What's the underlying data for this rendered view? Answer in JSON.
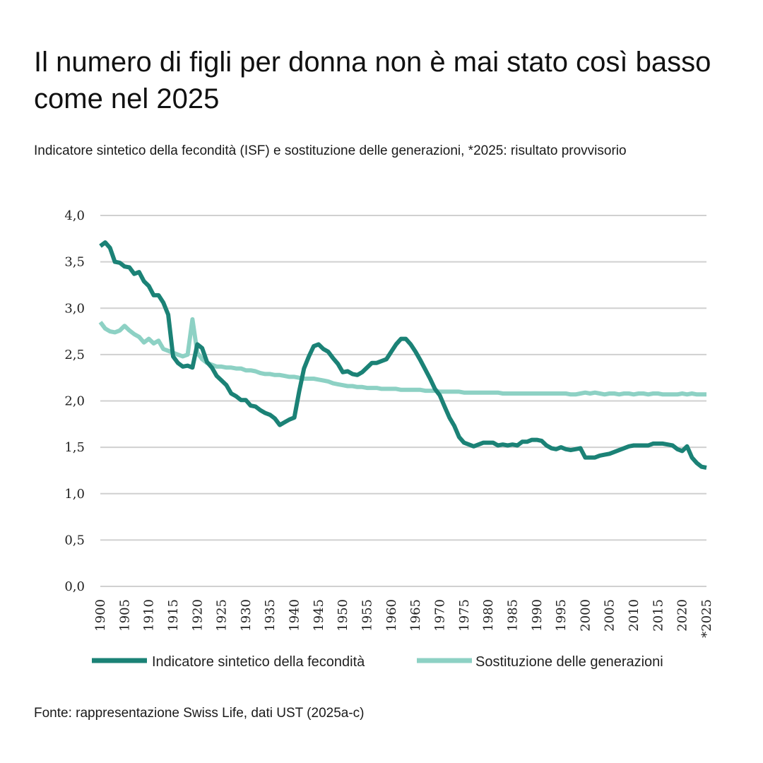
{
  "title": "Il numero di figli per donna non è mai stato così basso come nel 2025",
  "subtitle": "Indicatore sintetico della fecondità (ISF) e sostituzione delle generazioni, *2025: risultato provvisorio",
  "source": "Fonte: rappresentazione Swiss Life, dati UST (2025a-c)",
  "chart_data": {
    "type": "line",
    "xlim": [
      1900,
      2025
    ],
    "ylim": [
      0,
      4
    ],
    "grid": true,
    "legend_position": "bottom",
    "y_ticks": [
      {
        "value": 0,
        "label": "0,0"
      },
      {
        "value": 0.5,
        "label": "0,5"
      },
      {
        "value": 1,
        "label": "1,0"
      },
      {
        "value": 1.5,
        "label": "1,5"
      },
      {
        "value": 2,
        "label": "2,0"
      },
      {
        "value": 2.5,
        "label": "2,5"
      },
      {
        "value": 3,
        "label": "3,0"
      },
      {
        "value": 3.5,
        "label": "3,5"
      },
      {
        "value": 4,
        "label": "4,0"
      }
    ],
    "x_ticks": [
      {
        "value": 1900,
        "label": "1900"
      },
      {
        "value": 1905,
        "label": "1905"
      },
      {
        "value": 1910,
        "label": "1910"
      },
      {
        "value": 1915,
        "label": "1915"
      },
      {
        "value": 1920,
        "label": "1920"
      },
      {
        "value": 1925,
        "label": "1925"
      },
      {
        "value": 1930,
        "label": "1930"
      },
      {
        "value": 1935,
        "label": "1935"
      },
      {
        "value": 1940,
        "label": "1940"
      },
      {
        "value": 1945,
        "label": "1945"
      },
      {
        "value": 1950,
        "label": "1950"
      },
      {
        "value": 1955,
        "label": "1955"
      },
      {
        "value": 1960,
        "label": "1960"
      },
      {
        "value": 1965,
        "label": "1965"
      },
      {
        "value": 1970,
        "label": "1970"
      },
      {
        "value": 1975,
        "label": "1975"
      },
      {
        "value": 1980,
        "label": "1980"
      },
      {
        "value": 1985,
        "label": "1985"
      },
      {
        "value": 1990,
        "label": "1990"
      },
      {
        "value": 1995,
        "label": "1995"
      },
      {
        "value": 2000,
        "label": "2000"
      },
      {
        "value": 2005,
        "label": "2005"
      },
      {
        "value": 2010,
        "label": "2010"
      },
      {
        "value": 2015,
        "label": "2015"
      },
      {
        "value": 2020,
        "label": "2020"
      },
      {
        "value": 2025,
        "label": "*2025"
      }
    ],
    "series": [
      {
        "name": "Indicatore sintetico della fecondità",
        "color": "#1b8276",
        "points": [
          [
            1900,
            3.67
          ],
          [
            1901,
            3.71
          ],
          [
            1902,
            3.65
          ],
          [
            1903,
            3.5
          ],
          [
            1904,
            3.49
          ],
          [
            1905,
            3.45
          ],
          [
            1906,
            3.44
          ],
          [
            1907,
            3.37
          ],
          [
            1908,
            3.39
          ],
          [
            1909,
            3.29
          ],
          [
            1910,
            3.24
          ],
          [
            1911,
            3.14
          ],
          [
            1912,
            3.14
          ],
          [
            1913,
            3.06
          ],
          [
            1914,
            2.93
          ],
          [
            1915,
            2.48
          ],
          [
            1916,
            2.41
          ],
          [
            1917,
            2.37
          ],
          [
            1918,
            2.38
          ],
          [
            1919,
            2.36
          ],
          [
            1920,
            2.61
          ],
          [
            1921,
            2.57
          ],
          [
            1922,
            2.42
          ],
          [
            1923,
            2.36
          ],
          [
            1924,
            2.27
          ],
          [
            1925,
            2.22
          ],
          [
            1926,
            2.17
          ],
          [
            1927,
            2.08
          ],
          [
            1928,
            2.05
          ],
          [
            1929,
            2.01
          ],
          [
            1930,
            2.01
          ],
          [
            1931,
            1.95
          ],
          [
            1932,
            1.94
          ],
          [
            1933,
            1.9
          ],
          [
            1934,
            1.87
          ],
          [
            1935,
            1.85
          ],
          [
            1936,
            1.81
          ],
          [
            1937,
            1.74
          ],
          [
            1938,
            1.77
          ],
          [
            1939,
            1.8
          ],
          [
            1940,
            1.82
          ],
          [
            1941,
            2.1
          ],
          [
            1942,
            2.35
          ],
          [
            1943,
            2.48
          ],
          [
            1944,
            2.59
          ],
          [
            1945,
            2.61
          ],
          [
            1946,
            2.56
          ],
          [
            1947,
            2.53
          ],
          [
            1948,
            2.46
          ],
          [
            1949,
            2.4
          ],
          [
            1950,
            2.31
          ],
          [
            1951,
            2.32
          ],
          [
            1952,
            2.29
          ],
          [
            1953,
            2.28
          ],
          [
            1954,
            2.31
          ],
          [
            1955,
            2.36
          ],
          [
            1956,
            2.41
          ],
          [
            1957,
            2.41
          ],
          [
            1958,
            2.43
          ],
          [
            1959,
            2.45
          ],
          [
            1960,
            2.53
          ],
          [
            1961,
            2.61
          ],
          [
            1962,
            2.67
          ],
          [
            1963,
            2.67
          ],
          [
            1964,
            2.61
          ],
          [
            1965,
            2.53
          ],
          [
            1966,
            2.44
          ],
          [
            1967,
            2.34
          ],
          [
            1968,
            2.24
          ],
          [
            1969,
            2.13
          ],
          [
            1970,
            2.06
          ],
          [
            1971,
            1.94
          ],
          [
            1972,
            1.82
          ],
          [
            1973,
            1.73
          ],
          [
            1974,
            1.61
          ],
          [
            1975,
            1.55
          ],
          [
            1976,
            1.53
          ],
          [
            1977,
            1.51
          ],
          [
            1978,
            1.53
          ],
          [
            1979,
            1.55
          ],
          [
            1980,
            1.55
          ],
          [
            1981,
            1.55
          ],
          [
            1982,
            1.52
          ],
          [
            1983,
            1.53
          ],
          [
            1984,
            1.52
          ],
          [
            1985,
            1.53
          ],
          [
            1986,
            1.52
          ],
          [
            1987,
            1.56
          ],
          [
            1988,
            1.56
          ],
          [
            1989,
            1.58
          ],
          [
            1990,
            1.58
          ],
          [
            1991,
            1.57
          ],
          [
            1992,
            1.52
          ],
          [
            1993,
            1.49
          ],
          [
            1994,
            1.48
          ],
          [
            1995,
            1.5
          ],
          [
            1996,
            1.48
          ],
          [
            1997,
            1.47
          ],
          [
            1998,
            1.48
          ],
          [
            1999,
            1.49
          ],
          [
            2000,
            1.39
          ],
          [
            2001,
            1.39
          ],
          [
            2002,
            1.39
          ],
          [
            2003,
            1.41
          ],
          [
            2004,
            1.42
          ],
          [
            2005,
            1.43
          ],
          [
            2006,
            1.45
          ],
          [
            2007,
            1.47
          ],
          [
            2008,
            1.49
          ],
          [
            2009,
            1.51
          ],
          [
            2010,
            1.52
          ],
          [
            2011,
            1.52
          ],
          [
            2012,
            1.52
          ],
          [
            2013,
            1.52
          ],
          [
            2014,
            1.54
          ],
          [
            2015,
            1.54
          ],
          [
            2016,
            1.54
          ],
          [
            2017,
            1.53
          ],
          [
            2018,
            1.52
          ],
          [
            2019,
            1.48
          ],
          [
            2020,
            1.46
          ],
          [
            2021,
            1.51
          ],
          [
            2022,
            1.39
          ],
          [
            2023,
            1.33
          ],
          [
            2024,
            1.29
          ],
          [
            2025,
            1.28
          ]
        ]
      },
      {
        "name": "Sostituzione delle generazioni",
        "color": "#8dd1c4",
        "points": [
          [
            1900,
            2.85
          ],
          [
            1901,
            2.78
          ],
          [
            1902,
            2.75
          ],
          [
            1903,
            2.74
          ],
          [
            1904,
            2.76
          ],
          [
            1905,
            2.81
          ],
          [
            1906,
            2.76
          ],
          [
            1907,
            2.72
          ],
          [
            1908,
            2.69
          ],
          [
            1909,
            2.63
          ],
          [
            1910,
            2.67
          ],
          [
            1911,
            2.62
          ],
          [
            1912,
            2.65
          ],
          [
            1913,
            2.56
          ],
          [
            1914,
            2.54
          ],
          [
            1915,
            2.52
          ],
          [
            1916,
            2.5
          ],
          [
            1917,
            2.48
          ],
          [
            1918,
            2.5
          ],
          [
            1919,
            2.88
          ],
          [
            1920,
            2.52
          ],
          [
            1921,
            2.45
          ],
          [
            1922,
            2.41
          ],
          [
            1923,
            2.39
          ],
          [
            1924,
            2.37
          ],
          [
            1925,
            2.37
          ],
          [
            1926,
            2.36
          ],
          [
            1927,
            2.36
          ],
          [
            1928,
            2.35
          ],
          [
            1929,
            2.35
          ],
          [
            1930,
            2.33
          ],
          [
            1931,
            2.33
          ],
          [
            1932,
            2.32
          ],
          [
            1933,
            2.3
          ],
          [
            1934,
            2.29
          ],
          [
            1935,
            2.29
          ],
          [
            1936,
            2.28
          ],
          [
            1937,
            2.28
          ],
          [
            1938,
            2.27
          ],
          [
            1939,
            2.26
          ],
          [
            1940,
            2.26
          ],
          [
            1941,
            2.25
          ],
          [
            1942,
            2.24
          ],
          [
            1943,
            2.24
          ],
          [
            1944,
            2.24
          ],
          [
            1945,
            2.23
          ],
          [
            1946,
            2.22
          ],
          [
            1947,
            2.21
          ],
          [
            1948,
            2.19
          ],
          [
            1949,
            2.18
          ],
          [
            1950,
            2.17
          ],
          [
            1951,
            2.16
          ],
          [
            1952,
            2.16
          ],
          [
            1953,
            2.15
          ],
          [
            1954,
            2.15
          ],
          [
            1955,
            2.14
          ],
          [
            1956,
            2.14
          ],
          [
            1957,
            2.14
          ],
          [
            1958,
            2.13
          ],
          [
            1959,
            2.13
          ],
          [
            1960,
            2.13
          ],
          [
            1961,
            2.13
          ],
          [
            1962,
            2.12
          ],
          [
            1963,
            2.12
          ],
          [
            1964,
            2.12
          ],
          [
            1965,
            2.12
          ],
          [
            1966,
            2.12
          ],
          [
            1967,
            2.11
          ],
          [
            1968,
            2.11
          ],
          [
            1969,
            2.11
          ],
          [
            1970,
            2.1
          ],
          [
            1971,
            2.1
          ],
          [
            1972,
            2.1
          ],
          [
            1973,
            2.1
          ],
          [
            1974,
            2.1
          ],
          [
            1975,
            2.09
          ],
          [
            1976,
            2.09
          ],
          [
            1977,
            2.09
          ],
          [
            1978,
            2.09
          ],
          [
            1979,
            2.09
          ],
          [
            1980,
            2.09
          ],
          [
            1981,
            2.09
          ],
          [
            1982,
            2.09
          ],
          [
            1983,
            2.08
          ],
          [
            1984,
            2.08
          ],
          [
            1985,
            2.08
          ],
          [
            1986,
            2.08
          ],
          [
            1987,
            2.08
          ],
          [
            1988,
            2.08
          ],
          [
            1989,
            2.08
          ],
          [
            1990,
            2.08
          ],
          [
            1991,
            2.08
          ],
          [
            1992,
            2.08
          ],
          [
            1993,
            2.08
          ],
          [
            1994,
            2.08
          ],
          [
            1995,
            2.08
          ],
          [
            1996,
            2.08
          ],
          [
            1997,
            2.07
          ],
          [
            1998,
            2.07
          ],
          [
            1999,
            2.08
          ],
          [
            2000,
            2.09
          ],
          [
            2001,
            2.08
          ],
          [
            2002,
            2.09
          ],
          [
            2003,
            2.08
          ],
          [
            2004,
            2.07
          ],
          [
            2005,
            2.08
          ],
          [
            2006,
            2.08
          ],
          [
            2007,
            2.07
          ],
          [
            2008,
            2.08
          ],
          [
            2009,
            2.08
          ],
          [
            2010,
            2.07
          ],
          [
            2011,
            2.08
          ],
          [
            2012,
            2.08
          ],
          [
            2013,
            2.07
          ],
          [
            2014,
            2.08
          ],
          [
            2015,
            2.08
          ],
          [
            2016,
            2.07
          ],
          [
            2017,
            2.07
          ],
          [
            2018,
            2.07
          ],
          [
            2019,
            2.07
          ],
          [
            2020,
            2.08
          ],
          [
            2021,
            2.07
          ],
          [
            2022,
            2.08
          ],
          [
            2023,
            2.07
          ],
          [
            2024,
            2.07
          ],
          [
            2025,
            2.07
          ]
        ]
      }
    ]
  }
}
